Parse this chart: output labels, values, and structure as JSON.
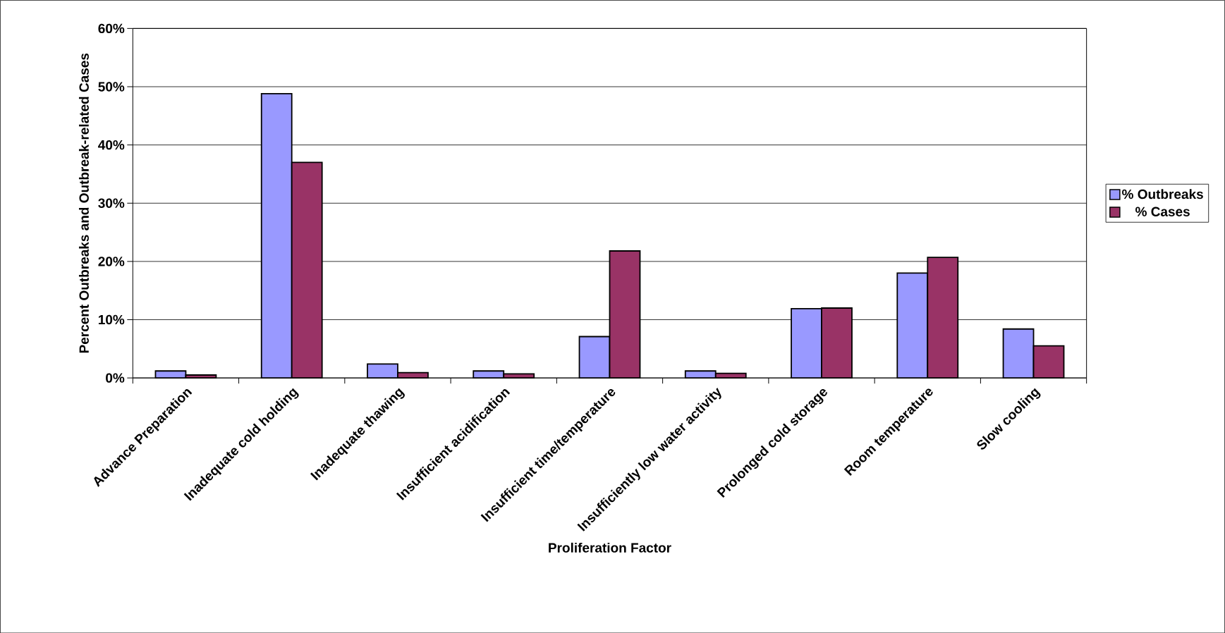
{
  "chart_data": {
    "type": "bar",
    "xlabel": "Proliferation Factor",
    "ylabel": "Percent Outbreaks and Outbreak-related Cases",
    "categories": [
      "Advance Preparation",
      "Inadequate cold holding",
      "Inadequate thawing",
      "Insufficient acidification",
      "Insufficient time/temperature",
      "Insufficiently low water activity",
      "Prolonged cold storage",
      "Room temperature",
      "Slow cooling"
    ],
    "series": [
      {
        "name": "% Outbreaks",
        "color": "#9999ff",
        "values": [
          1.2,
          48.8,
          2.4,
          1.2,
          7.1,
          1.2,
          11.9,
          18.0,
          8.4
        ]
      },
      {
        "name": "% Cases",
        "color": "#993366",
        "values": [
          0.5,
          37.0,
          0.9,
          0.7,
          21.8,
          0.8,
          12.0,
          20.7,
          5.5
        ]
      }
    ],
    "ylim": [
      0,
      60
    ],
    "yticks": [
      {
        "value": 0,
        "label": "0%"
      },
      {
        "value": 10,
        "label": "10%"
      },
      {
        "value": 20,
        "label": "20%"
      },
      {
        "value": 30,
        "label": "30%"
      },
      {
        "value": 40,
        "label": "40%"
      },
      {
        "value": 50,
        "label": "50%"
      },
      {
        "value": 60,
        "label": "60%"
      }
    ],
    "grid": "y",
    "legend": "right"
  }
}
